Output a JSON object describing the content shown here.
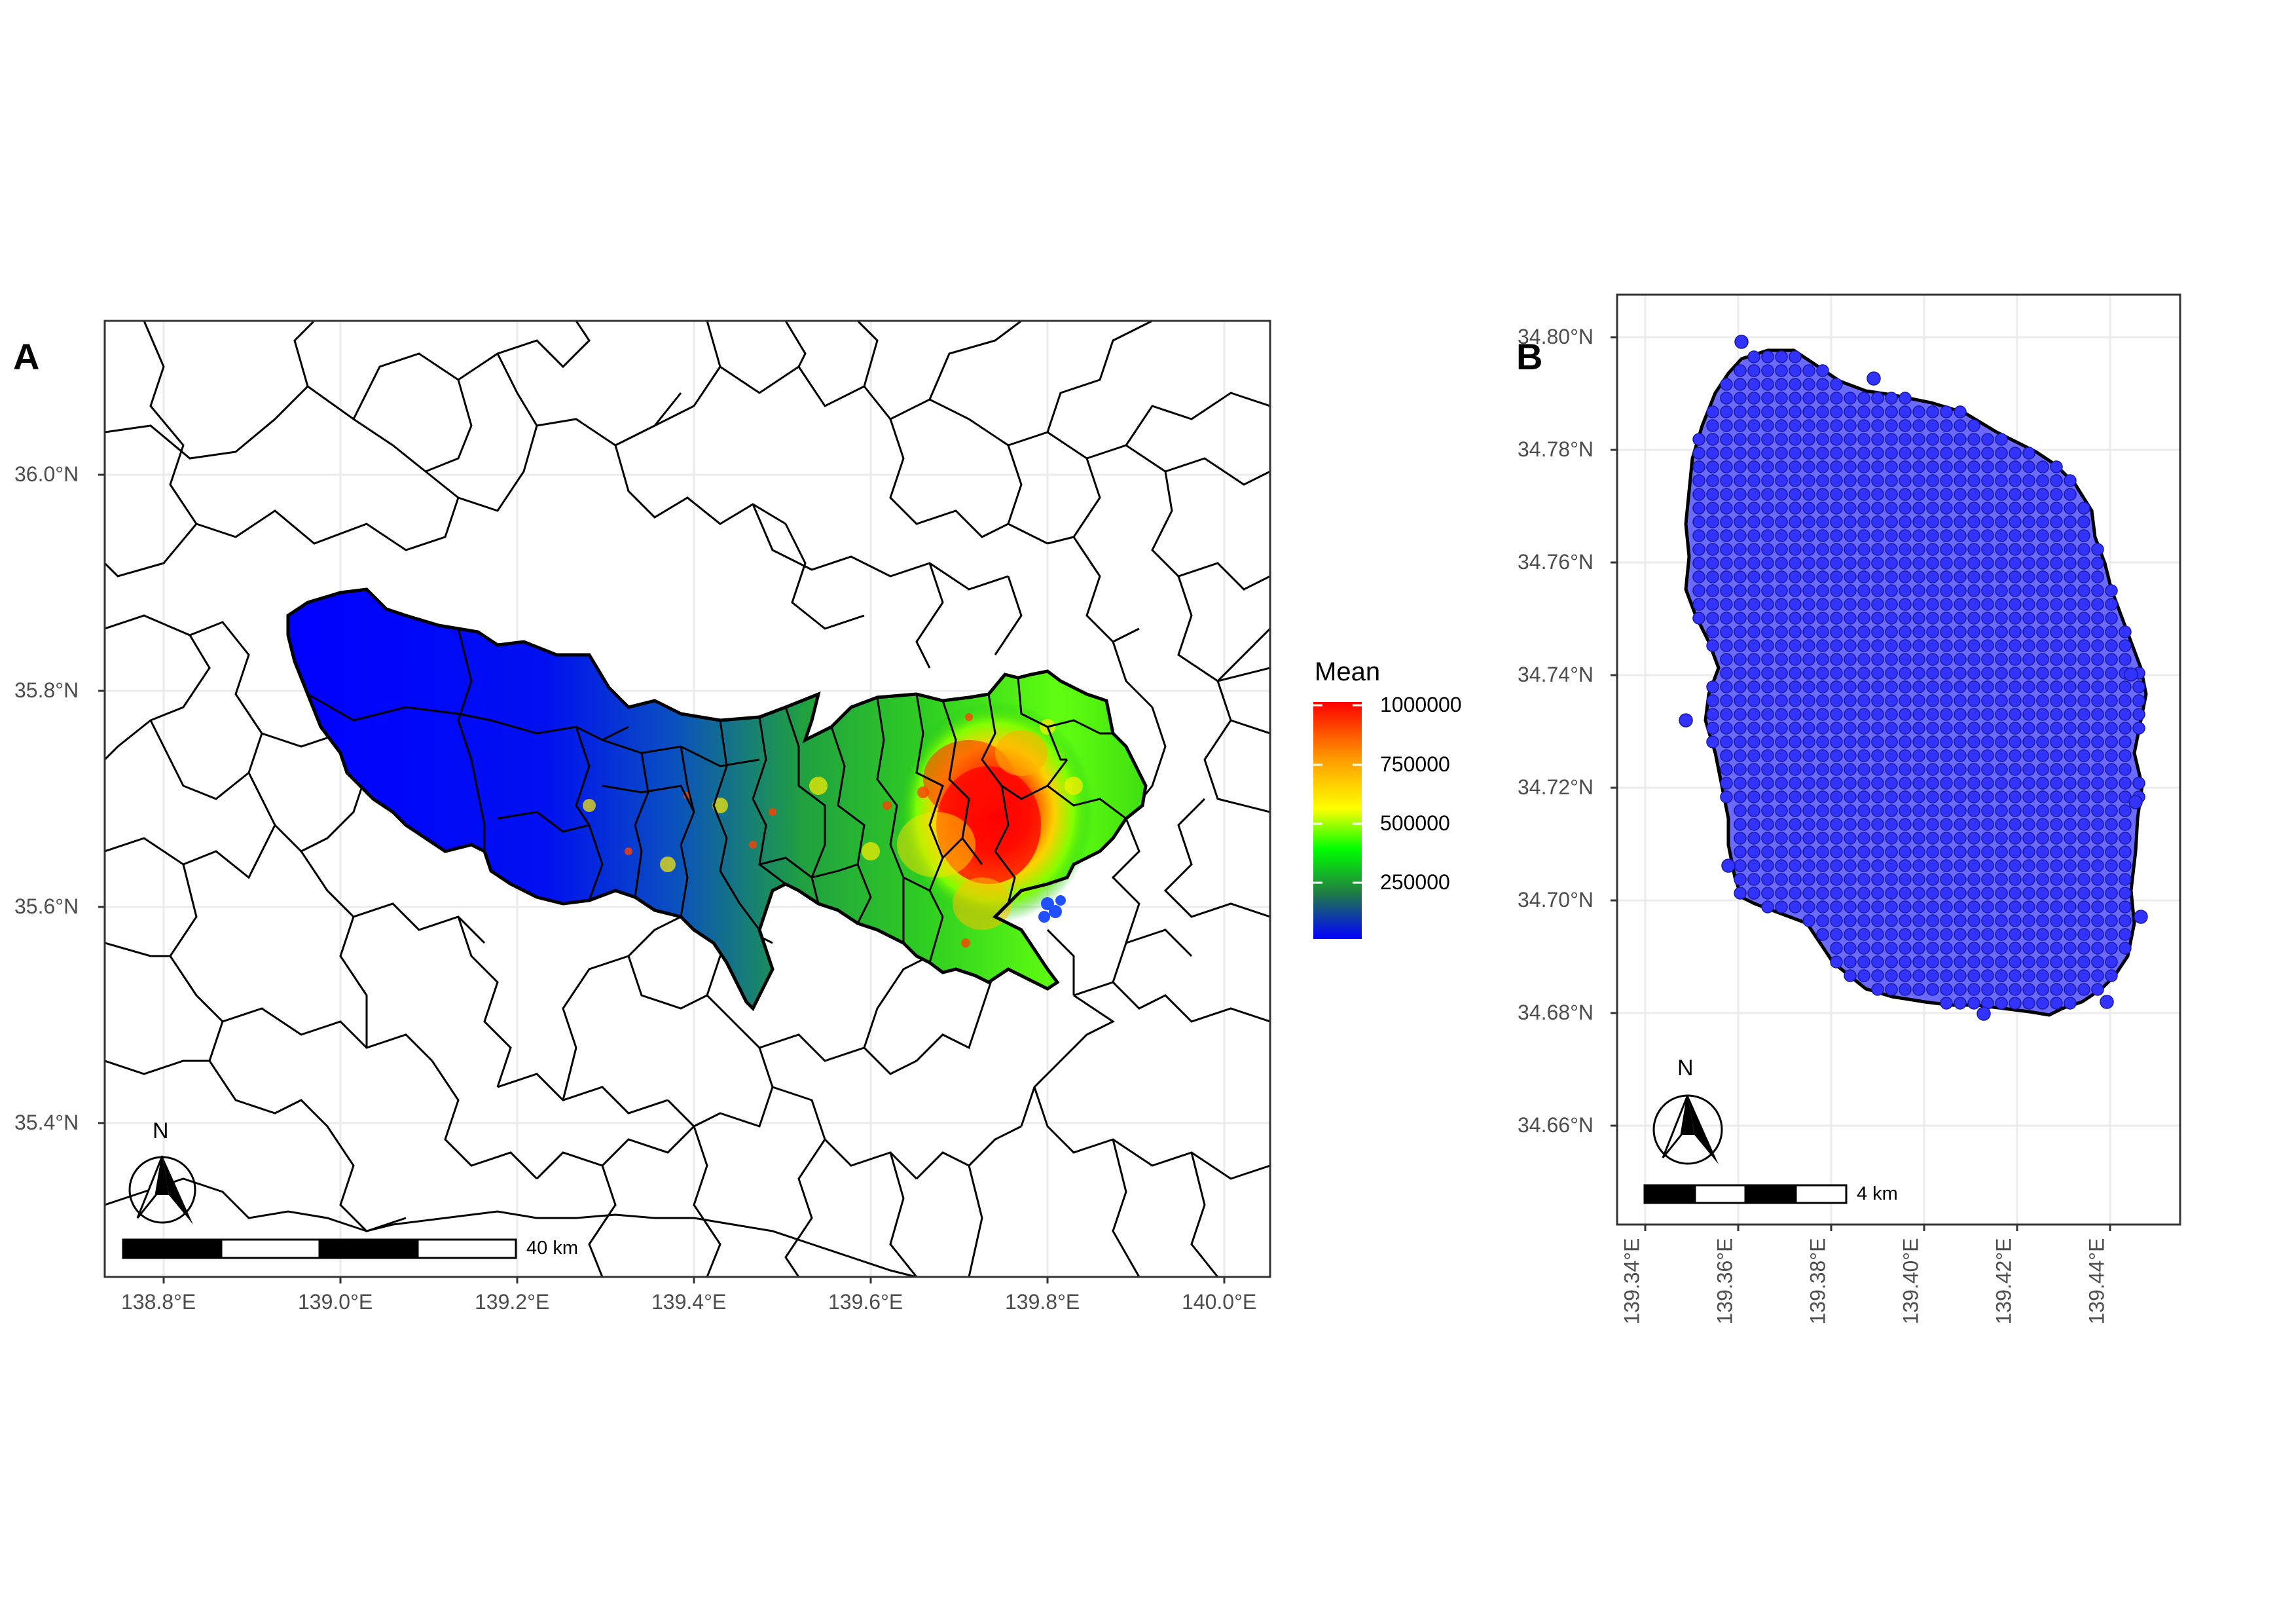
{
  "panel_a": {
    "label": "A",
    "y_ticks": [
      "36.0°N",
      "35.8°N",
      "35.6°N",
      "35.4°N"
    ],
    "x_ticks": [
      "138.8°E",
      "139.0°E",
      "139.2°E",
      "139.4°E",
      "139.6°E",
      "139.8°E",
      "140.0°E"
    ],
    "north_arrow_label": "N",
    "scale_label": "40 km",
    "legend": {
      "title": "Mean",
      "ticks": [
        "1000000",
        "750000",
        "500000",
        "250000"
      ],
      "colors": [
        "#ff0000",
        "#ffff00",
        "#00ff00",
        "#0000ff"
      ]
    }
  },
  "panel_b": {
    "label": "B",
    "y_ticks": [
      "34.80°N",
      "34.78°N",
      "34.76°N",
      "34.74°N",
      "34.72°N",
      "34.70°N",
      "34.68°N",
      "34.66°N"
    ],
    "x_ticks": [
      "139.34°E",
      "139.36°E",
      "139.38°E",
      "139.40°E",
      "139.42°E",
      "139.44°E"
    ],
    "north_arrow_label": "N",
    "scale_label": "4 km",
    "point_color": "#3333ff"
  },
  "colors": {
    "density_high": "#ff0000",
    "density_low": "#0000ff",
    "boundary": "#000000",
    "grid": "#ebebeb"
  }
}
